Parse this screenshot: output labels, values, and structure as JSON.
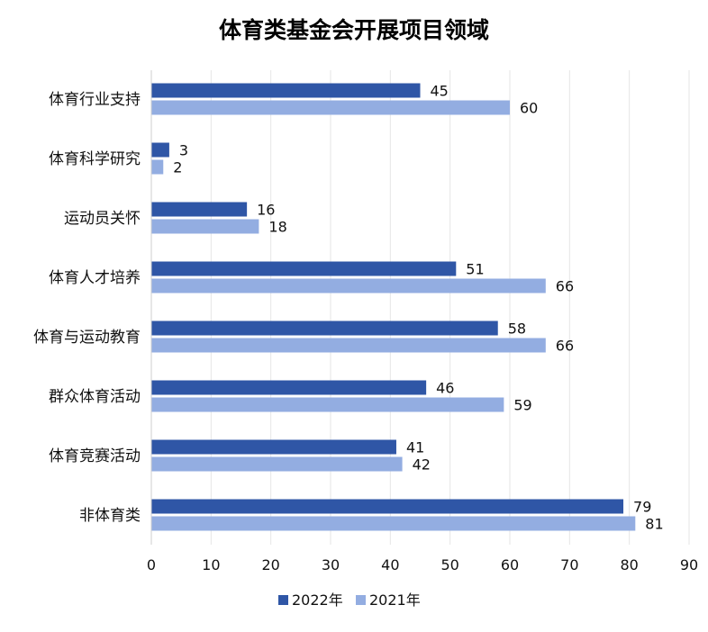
{
  "chart_data": {
    "type": "bar",
    "orientation": "horizontal",
    "title": "体育类基金会开展项目领域",
    "categories": [
      "体育行业支持",
      "体育科学研究",
      "运动员关怀",
      "体育人才培养",
      "体育与运动教育",
      "群众体育活动",
      "体育竞赛活动",
      "非体育类"
    ],
    "series": [
      {
        "name": "2022年",
        "color": "#2f56a6",
        "values": [
          45,
          3,
          16,
          51,
          58,
          46,
          41,
          79
        ]
      },
      {
        "name": "2021年",
        "color": "#93ade1",
        "values": [
          60,
          2,
          18,
          66,
          66,
          59,
          42,
          81
        ]
      }
    ],
    "xlim": [
      0,
      90
    ],
    "xticks": [
      0,
      10,
      20,
      30,
      40,
      50,
      60,
      70,
      80,
      90
    ],
    "grid": "vertical",
    "legend_position": "bottom-center",
    "xlabel": "",
    "ylabel": ""
  }
}
